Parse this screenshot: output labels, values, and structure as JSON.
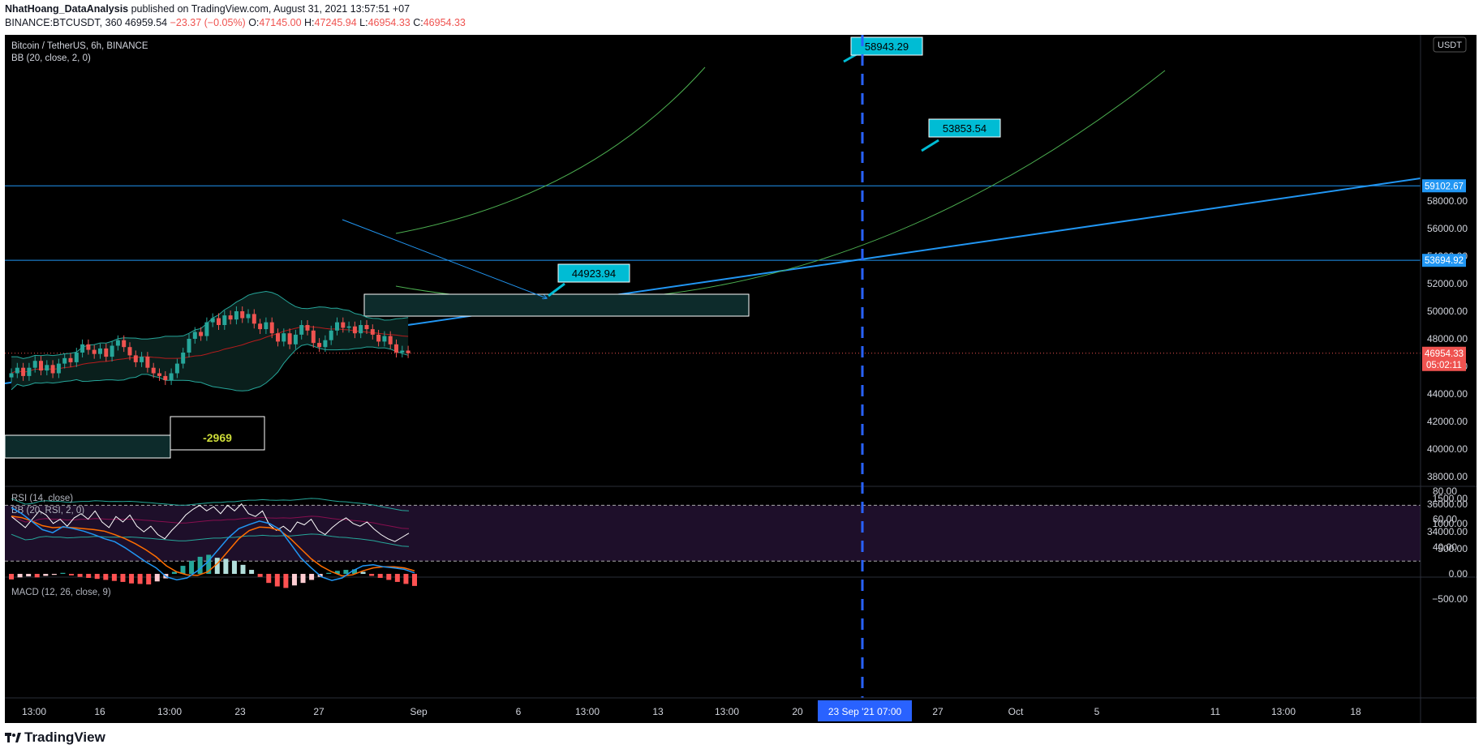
{
  "header": {
    "author": "NhatHoang_DataAnalysis",
    "published": " published on TradingView.com, August 31, 2021 13:57:51 +07",
    "symbol": "BINANCE:BTCUSDT, 360",
    "price": "46959.54",
    "change": "−23.37 (−0.05%)",
    "open_label": "O:",
    "open": "47145.00",
    "high_label": "H:",
    "high": "47245.94",
    "low_label": "L:",
    "low": "46954.33",
    "close_label": "C:",
    "close": "46954.33"
  },
  "footer": {
    "brand": "TradingView"
  },
  "colors": {
    "accent_blue": "#2196f3",
    "callout": "#00bcd4",
    "down": "#ef5350",
    "up": "#26a69a",
    "curve": "#4caf50",
    "rsi_band": "#1e0f2a"
  },
  "chart_data": [
    {
      "type": "candlestick",
      "title": "Bitcoin / TetherUS, 6h, BINANCE",
      "indicator": "BB (20, close, 2, 0)",
      "currency": "USDT",
      "y_ticks": [
        "58000.00",
        "56000.00",
        "54000.00",
        "52000.00",
        "50000.00",
        "48000.00",
        "46000.00",
        "44000.00",
        "42000.00",
        "40000.00",
        "38000.00",
        "36000.00",
        "34000.00"
      ],
      "ylim": [
        33000,
        61500
      ],
      "price_labels": [
        {
          "value": 59102.67,
          "text": "59102.67"
        },
        {
          "value": 53694.92,
          "text": "53694.92"
        },
        {
          "value": 46954.33,
          "text": "46954.33",
          "countdown": "05:02:11"
        }
      ],
      "callouts": [
        {
          "text": "58943.29",
          "value": 58943.29
        },
        {
          "text": "53853.54",
          "value": 53853.54
        },
        {
          "text": "44923.94",
          "value": 44923.94
        }
      ],
      "measure_label": "-2969",
      "x_ticks": [
        "13:00",
        "16",
        "13:00",
        "23",
        "27",
        "Sep",
        "6",
        "13:00",
        "13",
        "13:00",
        "20",
        "27",
        "Oct",
        "5",
        "11",
        "13:00",
        "18"
      ],
      "crosshair_label": "23 Sep '21   07:00",
      "close_series": [
        45500,
        45900,
        45300,
        45900,
        46400,
        45700,
        46100,
        45500,
        46200,
        46600,
        46300,
        47000,
        47600,
        47200,
        46900,
        47300,
        46700,
        47500,
        47900,
        47400,
        46800,
        46300,
        46700,
        45900,
        45500,
        45300,
        45000,
        45500,
        46200,
        47000,
        48000,
        48500,
        48200,
        49200,
        49500,
        49000,
        49700,
        49400,
        50000,
        49500,
        49800,
        49100,
        48700,
        49200,
        48400,
        47800,
        48400,
        47600,
        48300,
        49000,
        48600,
        47700,
        47400,
        47900,
        48600,
        49200,
        48800,
        48900,
        48400,
        49000,
        48700,
        48300,
        47800,
        48200,
        47600,
        47000,
        47145,
        46954
      ]
    },
    {
      "type": "line",
      "title": "RSI (14, close)",
      "indicator": "BB (20, RSI, 2, 0)",
      "y_ticks": [
        "80.00",
        "60.00",
        "40.00"
      ],
      "ylim": [
        28,
        82
      ],
      "bands": [
        70,
        30
      ],
      "series": [
        {
          "values": [
            62,
            58,
            54,
            60,
            66,
            63,
            57,
            60,
            55,
            61,
            64,
            60,
            66,
            58,
            54,
            62,
            58,
            63,
            55,
            51,
            55,
            49,
            46,
            52,
            57,
            63,
            67,
            70,
            66,
            69,
            64,
            70,
            66,
            71,
            64,
            62,
            66,
            56,
            52,
            55,
            51,
            58,
            56,
            60,
            52,
            49,
            54,
            58,
            61,
            57,
            55,
            58,
            53,
            49,
            46,
            44,
            47,
            50
          ]
        }
      ]
    },
    {
      "type": "bar",
      "title": "MACD (12, 26, close, 9)",
      "y_ticks": [
        "1500.00",
        "1000.00",
        "500.00",
        "0.00",
        "−500.00"
      ],
      "ylim": [
        -520,
        1550
      ],
      "series": [
        {
          "name": "MACD",
          "values": [
            1320,
            1200,
            1040,
            880,
            820,
            940,
            900,
            850,
            780,
            700,
            640,
            520,
            380,
            240,
            120,
            -60,
            -120,
            -80,
            60,
            240,
            480,
            720,
            900,
            980,
            1050,
            1000,
            880,
            600,
            320,
            120,
            -60,
            -130,
            -80,
            60,
            160,
            180,
            140,
            120,
            90,
            20
          ]
        },
        {
          "name": "Signal",
          "values": [
            1150,
            1120,
            1050,
            960,
            920,
            930,
            920,
            900,
            880,
            850,
            780,
            700,
            600,
            480,
            340,
            160,
            40,
            -20,
            -30,
            40,
            220,
            460,
            700,
            860,
            930,
            920,
            860,
            700,
            500,
            300,
            150,
            40,
            -40,
            -20,
            60,
            120,
            140,
            140,
            120,
            60
          ]
        },
        {
          "name": "Histogram",
          "values": [
            -110,
            -70,
            -50,
            -70,
            -40,
            -20,
            20,
            -30,
            -60,
            -80,
            -100,
            -120,
            -140,
            -160,
            -190,
            -200,
            -210,
            -150,
            -90,
            40,
            160,
            260,
            340,
            380,
            320,
            300,
            260,
            180,
            80,
            -60,
            -180,
            -250,
            -280,
            -230,
            -180,
            -120,
            -60,
            20,
            60,
            80,
            90,
            40,
            -40,
            -80,
            -120,
            -160,
            -200,
            -240
          ]
        }
      ]
    }
  ]
}
